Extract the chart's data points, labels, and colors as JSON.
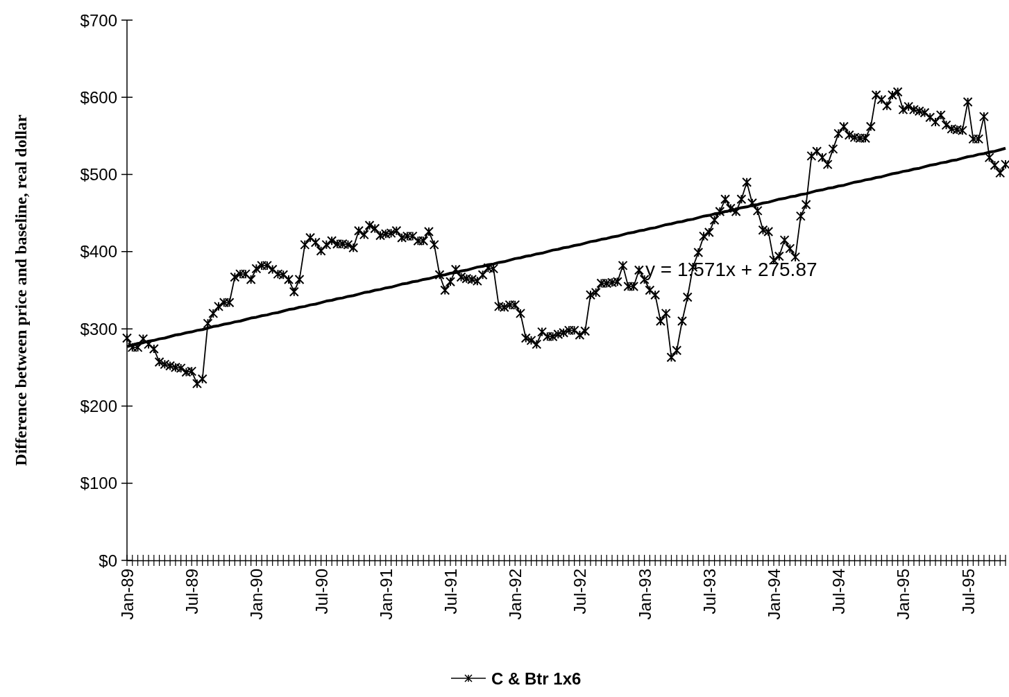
{
  "chart_data": {
    "type": "line",
    "ylabel": "Difference between price and baseline, real dollar",
    "categories": [
      "Jan-89",
      null,
      null,
      null,
      null,
      null,
      null,
      null,
      null,
      null,
      null,
      null,
      "Jul-89",
      null,
      null,
      null,
      null,
      null,
      null,
      null,
      null,
      null,
      null,
      null,
      "Jan-90",
      null,
      null,
      null,
      null,
      null,
      null,
      null,
      null,
      null,
      null,
      null,
      "Jul-90",
      null,
      null,
      null,
      null,
      null,
      null,
      null,
      null,
      null,
      null,
      null,
      "Jan-91",
      null,
      null,
      null,
      null,
      null,
      null,
      null,
      null,
      null,
      null,
      null,
      "Jul-91",
      null,
      null,
      null,
      null,
      null,
      null,
      null,
      null,
      null,
      null,
      null,
      "Jan-92",
      null,
      null,
      null,
      null,
      null,
      null,
      null,
      null,
      null,
      null,
      null,
      "Jul-92",
      null,
      null,
      null,
      null,
      null,
      null,
      null,
      null,
      null,
      null,
      null,
      "Jan-93",
      null,
      null,
      null,
      null,
      null,
      null,
      null,
      null,
      null,
      null,
      null,
      "Jul-93",
      null,
      null,
      null,
      null,
      null,
      null,
      null,
      null,
      null,
      null,
      null,
      "Jan-94",
      null,
      null,
      null,
      null,
      null,
      null,
      null,
      null,
      null,
      null,
      null,
      "Jul-94",
      null,
      null,
      null,
      null,
      null,
      null,
      null,
      null,
      null,
      null,
      null,
      "Jan-95",
      null,
      null,
      null,
      null,
      null,
      null,
      null,
      null,
      null,
      null,
      null,
      "Jul-95",
      null,
      null,
      null,
      null,
      null,
      null,
      null
    ],
    "series": [
      {
        "name": "C & Btr 1x6",
        "color": "#000000",
        "values": [
          288,
          276,
          276,
          287,
          280,
          274,
          257,
          254,
          252,
          250,
          249,
          244,
          245,
          229,
          235,
          307,
          320,
          329,
          334,
          334,
          367,
          371,
          371,
          364,
          378,
          382,
          382,
          377,
          371,
          370,
          364,
          348,
          364,
          409,
          418,
          412,
          401,
          409,
          414,
          410,
          410,
          409,
          405,
          427,
          422,
          434,
          430,
          421,
          423,
          424,
          427,
          418,
          420,
          420,
          414,
          414,
          426,
          409,
          370,
          350,
          361,
          377,
          367,
          365,
          364,
          362,
          370,
          379,
          378,
          329,
          328,
          331,
          331,
          320,
          288,
          285,
          280,
          296,
          290,
          290,
          293,
          295,
          298,
          298,
          292,
          297,
          344,
          347,
          359,
          359,
          360,
          361,
          382,
          355,
          355,
          376,
          364,
          350,
          344,
          310,
          320,
          263,
          272,
          310,
          341,
          380,
          399,
          420,
          425,
          441,
          452,
          468,
          456,
          452,
          468,
          490,
          463,
          453,
          428,
          426,
          389,
          394,
          415,
          404,
          393,
          446,
          461,
          524,
          530,
          522,
          513,
          533,
          553,
          562,
          551,
          548,
          547,
          547,
          562,
          603,
          597,
          589,
          603,
          607,
          584,
          588,
          584,
          582,
          580,
          574,
          568,
          577,
          564,
          559,
          558,
          557,
          594,
          546,
          546,
          575,
          522,
          512,
          502,
          513
        ]
      },
      {
        "type": "line",
        "color": "#000000",
        "marker": "none",
        "values": [
          277,
          279,
          281,
          282,
          284,
          285,
          287,
          288,
          290,
          292,
          293,
          295,
          296,
          298,
          299,
          301,
          303,
          304,
          306,
          307,
          309,
          310,
          312,
          314,
          315,
          317,
          318,
          320,
          321,
          323,
          325,
          326,
          328,
          329,
          331,
          332,
          334,
          336,
          337,
          339,
          340,
          342,
          343,
          345,
          347,
          348,
          350,
          351,
          353,
          354,
          356,
          358,
          359,
          361,
          362,
          364,
          365,
          367,
          369,
          370,
          372,
          373,
          375,
          376,
          378,
          380,
          381,
          383,
          384,
          386,
          387,
          389,
          391,
          392,
          394,
          395,
          397,
          398,
          400,
          402,
          403,
          405,
          406,
          408,
          409,
          411,
          413,
          414,
          416,
          417,
          419,
          420,
          422,
          424,
          425,
          427,
          428,
          430,
          431,
          433,
          435,
          436,
          438,
          439,
          441,
          442,
          444,
          446,
          447,
          449,
          450,
          452,
          453,
          455,
          457,
          458,
          460,
          461,
          463,
          464,
          466,
          468,
          469,
          471,
          472,
          474,
          475,
          477,
          479,
          480,
          482,
          483,
          485,
          486,
          488,
          490,
          491,
          493,
          494,
          496,
          497,
          499,
          501,
          502,
          504,
          505,
          507,
          508,
          510,
          512,
          513,
          515,
          516,
          518,
          519,
          521,
          523,
          524,
          526,
          527,
          529,
          530,
          532,
          534
        ]
      }
    ],
    "marker": "cross",
    "legend": "bottom",
    "annotations": [
      "y = 1.571x + 275.87"
    ],
    "ylim": [
      0,
      700
    ],
    "yticks": [
      {
        "value": 0,
        "label": "$0"
      },
      {
        "value": 100,
        "label": "$100"
      },
      {
        "value": 200,
        "label": "$200"
      },
      {
        "value": 300,
        "label": "$300"
      },
      {
        "value": 400,
        "label": "$400"
      },
      {
        "value": 500,
        "label": "$500"
      },
      {
        "value": 600,
        "label": "$600"
      },
      {
        "value": 700,
        "label": "$700"
      }
    ]
  }
}
